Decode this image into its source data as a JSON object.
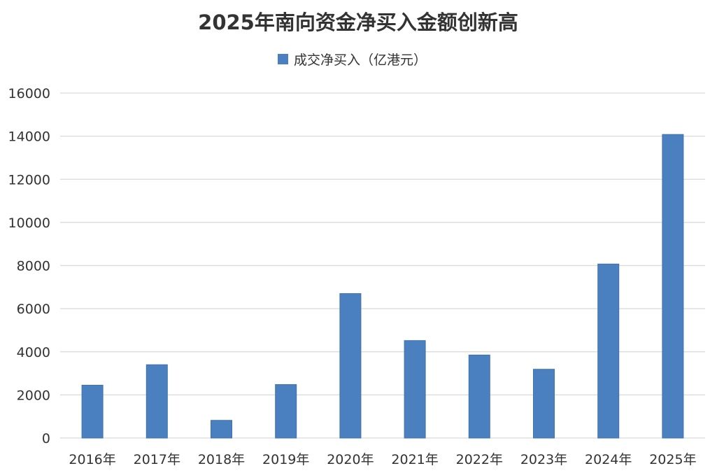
{
  "chart_data": {
    "type": "bar",
    "title": "2025年南向资金净买入金额创新高",
    "categories": [
      "2016年",
      "2017年",
      "2018年",
      "2019年",
      "2020年",
      "2021年",
      "2022年",
      "2023年",
      "2024年",
      "2025年"
    ],
    "series": [
      {
        "name": "成交净买入（亿港元）",
        "color": "#4a80bf",
        "values": [
          2450,
          3400,
          820,
          2480,
          6700,
          4520,
          3850,
          3190,
          8070,
          14080
        ]
      }
    ],
    "ylim": [
      0,
      16000
    ],
    "yticks": [
      0,
      2000,
      4000,
      6000,
      8000,
      10000,
      12000,
      14000,
      16000
    ],
    "grid": true,
    "legend_position": "top-center"
  }
}
